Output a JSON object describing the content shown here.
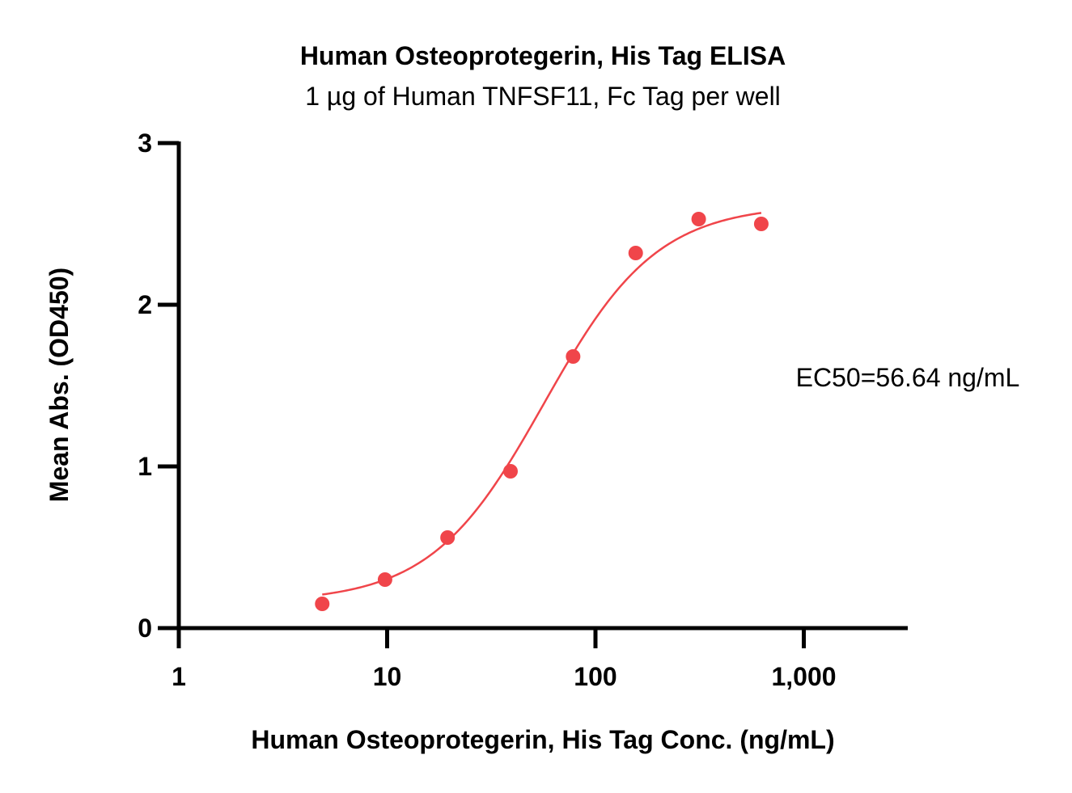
{
  "chart_data": {
    "type": "scatter",
    "title": "Human Osteoprotegerin, His Tag ELISA",
    "subtitle": "1 µg of Human TNFSF11, Fc Tag per well",
    "xlabel": "Human Osteoprotegerin, His Tag Conc. (ng/mL)",
    "ylabel": "Mean Abs. (OD450)",
    "x_scale": "log",
    "xlim": [
      1,
      3000
    ],
    "ylim": [
      0,
      3
    ],
    "x_ticks": [
      1,
      10,
      100,
      1000
    ],
    "x_tick_labels": [
      "1",
      "10",
      "100",
      "1,000"
    ],
    "y_ticks": [
      0,
      1,
      2,
      3
    ],
    "y_tick_labels": [
      "0",
      "1",
      "2",
      "3"
    ],
    "grid": false,
    "annotation": "EC50=56.64 ng/mL",
    "color": "#f0454a",
    "series": [
      {
        "x": [
          4.88,
          9.77,
          19.5,
          39.1,
          78.1,
          156,
          313,
          625
        ],
        "y": [
          0.15,
          0.3,
          0.56,
          0.97,
          1.68,
          2.32,
          2.53,
          2.5
        ]
      }
    ],
    "fit": {
      "type": "4PL",
      "bottom": 0.16,
      "top": 2.62,
      "ec50": 56.64,
      "hill": 1.6,
      "x_range": [
        4.88,
        625
      ]
    }
  }
}
